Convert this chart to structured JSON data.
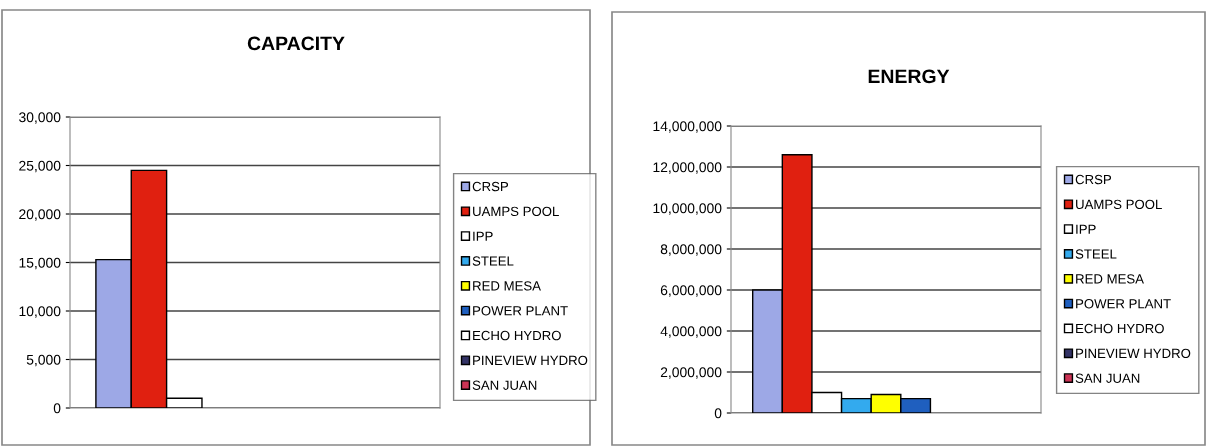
{
  "chart_data": [
    {
      "type": "bar",
      "title": "CAPACITY",
      "categories": [
        null
      ],
      "ylim": [
        0,
        30000
      ],
      "yticks": [
        {
          "value": 0,
          "label": "0"
        },
        {
          "value": 5000,
          "label": "5,000"
        },
        {
          "value": 10000,
          "label": "10,000"
        },
        {
          "value": 15000,
          "label": "15,000"
        },
        {
          "value": 20000,
          "label": "20,000"
        },
        {
          "value": 25000,
          "label": "25,000"
        },
        {
          "value": 30000,
          "label": "30,000"
        }
      ],
      "grid": "y",
      "legend": "right",
      "series": [
        {
          "name": "CRSP",
          "color": "#9da8e6",
          "values": [
            15300
          ]
        },
        {
          "name": "UAMPS POOL",
          "color": "#e02010",
          "values": [
            24500
          ]
        },
        {
          "name": "IPP",
          "color": "#ffffff",
          "values": [
            1000
          ]
        },
        {
          "name": "STEEL",
          "color": "#33aaee",
          "values": [
            0
          ]
        },
        {
          "name": "RED MESA",
          "color": "#ffff00",
          "values": [
            0
          ]
        },
        {
          "name": "POWER PLANT",
          "color": "#1f5fbf",
          "values": [
            0
          ]
        },
        {
          "name": "ECHO HYDRO",
          "color": "#ffffff",
          "values": [
            0
          ]
        },
        {
          "name": "PINEVIEW HYDRO",
          "color": "#333366",
          "values": [
            0
          ]
        },
        {
          "name": "SAN JUAN",
          "color": "#cc3355",
          "values": [
            0
          ]
        }
      ]
    },
    {
      "type": "bar",
      "title": "ENERGY",
      "categories": [
        null
      ],
      "ylim": [
        0,
        14000000
      ],
      "yticks": [
        {
          "value": 0,
          "label": "0"
        },
        {
          "value": 2000000,
          "label": "2,000,000"
        },
        {
          "value": 4000000,
          "label": "4,000,000"
        },
        {
          "value": 6000000,
          "label": "6,000,000"
        },
        {
          "value": 8000000,
          "label": "8,000,000"
        },
        {
          "value": 10000000,
          "label": "10,000,000"
        },
        {
          "value": 12000000,
          "label": "12,000,000"
        },
        {
          "value": 14000000,
          "label": "14,000,000"
        }
      ],
      "grid": "y",
      "legend": "right",
      "series": [
        {
          "name": "CRSP",
          "color": "#9da8e6",
          "values": [
            6000000
          ]
        },
        {
          "name": "UAMPS POOL",
          "color": "#e02010",
          "values": [
            12600000
          ]
        },
        {
          "name": "IPP",
          "color": "#ffffff",
          "values": [
            1000000
          ]
        },
        {
          "name": "STEEL",
          "color": "#33aaee",
          "values": [
            700000
          ]
        },
        {
          "name": "RED MESA",
          "color": "#ffff00",
          "values": [
            900000
          ]
        },
        {
          "name": "POWER PLANT",
          "color": "#1f5fbf",
          "values": [
            700000
          ]
        },
        {
          "name": "ECHO HYDRO",
          "color": "#ffffff",
          "values": [
            0
          ]
        },
        {
          "name": "PINEVIEW HYDRO",
          "color": "#333366",
          "values": [
            0
          ]
        },
        {
          "name": "SAN JUAN",
          "color": "#cc3355",
          "values": [
            0
          ]
        }
      ]
    }
  ]
}
